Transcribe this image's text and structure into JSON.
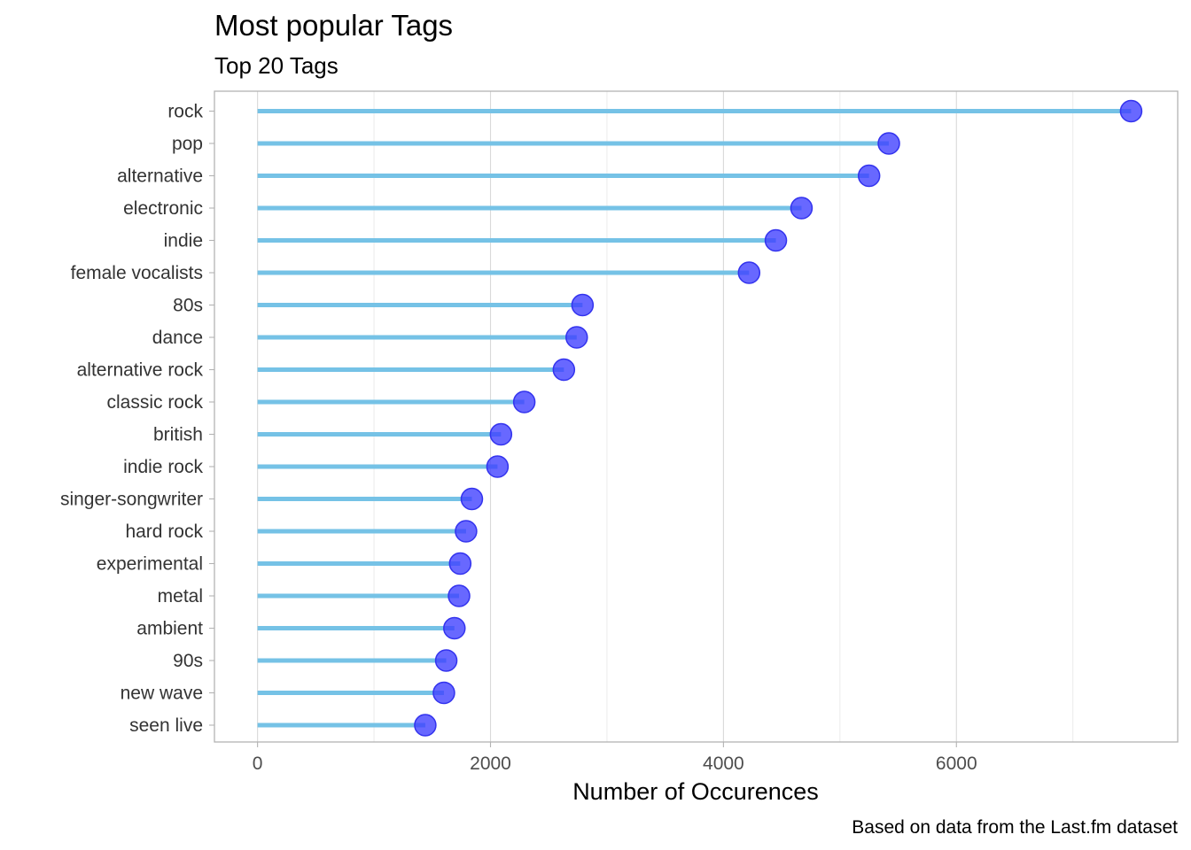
{
  "chart_data": {
    "type": "lollipop",
    "title": "Most popular Tags",
    "subtitle": "Top 20 Tags",
    "xlabel": "Number of Occurences",
    "ylabel": "",
    "caption": "Based on data from the Last.fm dataset",
    "xlim": [
      -370,
      7900
    ],
    "xticks": [
      0,
      2000,
      4000,
      6000
    ],
    "xtick_labels": [
      "0",
      "2000",
      "4000",
      "6000"
    ],
    "grid": true,
    "legend": "none",
    "colors": {
      "stem": "#75c2e6",
      "point": "#3d3dff",
      "point_stroke": "#3333ee",
      "panel_border": "#b3b3b3",
      "grid": "#d9d9d9"
    },
    "categories": [
      "rock",
      "pop",
      "alternative",
      "electronic",
      "indie",
      "female vocalists",
      "80s",
      "dance",
      "alternative rock",
      "classic rock",
      "british",
      "indie rock",
      "singer-songwriter",
      "hard rock",
      "experimental",
      "metal",
      "ambient",
      "90s",
      "new wave",
      "seen live"
    ],
    "values": [
      7500,
      5420,
      5250,
      4670,
      4450,
      4220,
      2790,
      2740,
      2630,
      2290,
      2090,
      2060,
      1840,
      1790,
      1740,
      1730,
      1690,
      1620,
      1600,
      1440
    ]
  }
}
